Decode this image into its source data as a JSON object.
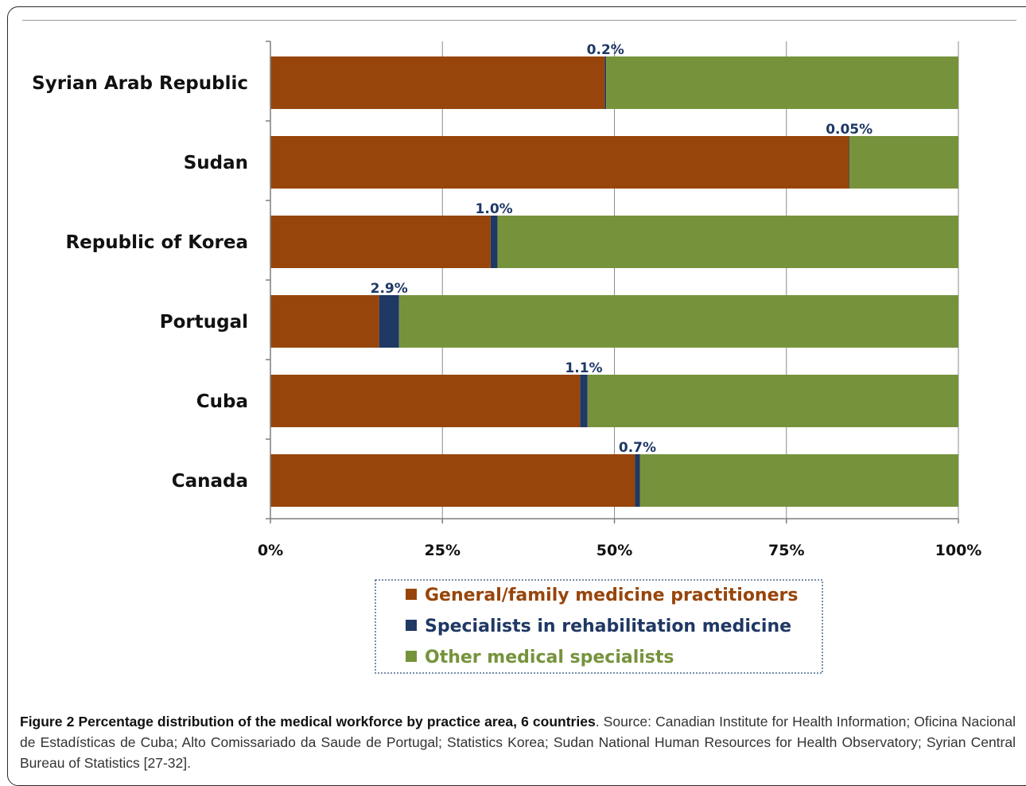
{
  "chart_data": {
    "type": "bar",
    "orientation": "horizontal",
    "stacked": true,
    "categories": [
      "Syrian Arab Republic",
      "Sudan",
      "Republic of Korea",
      "Portugal",
      "Cuba",
      "Canada"
    ],
    "series": [
      {
        "name": "General/family medicine practitioners",
        "color": "#97450b",
        "values": [
          48.6,
          84.1,
          32.0,
          15.8,
          45.0,
          53.0
        ]
      },
      {
        "name": "Specialists in rehabilitation medicine",
        "color": "#1f3864",
        "values": [
          0.2,
          0.05,
          1.0,
          2.9,
          1.1,
          0.7
        ]
      },
      {
        "name": "Other medical specialists",
        "color": "#76933c",
        "values": [
          51.2,
          15.85,
          67.0,
          81.3,
          53.9,
          46.3
        ]
      }
    ],
    "point_labels": [
      "0.2%",
      "0.05%",
      "1.0%",
      "2.9%",
      "1.1%",
      "0.7%"
    ],
    "xticks": [
      "0%",
      "25%",
      "50%",
      "75%",
      "100%"
    ],
    "xlim": [
      0,
      100
    ],
    "grid": true,
    "legend_position": "bottom-center"
  },
  "caption": {
    "label": "Figure 2",
    "title": "Percentage distribution of the medical workforce by practice area, 6 countries",
    "text": ". Source: Canadian Institute for Health Information; Oficina Nacional de Estadísticas de Cuba; Alto Comissariado da Saude de Portugal; Statistics Korea; Sudan National Human Resources for Health Observatory; Syrian Central Bureau of Statistics [27-32]."
  }
}
